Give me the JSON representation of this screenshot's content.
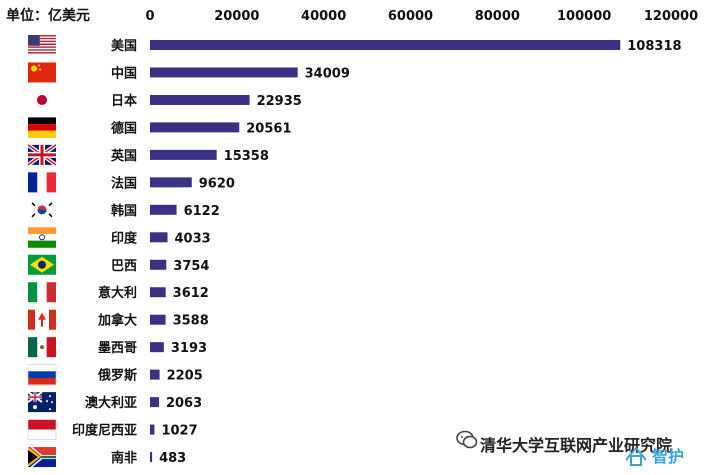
{
  "chart_data": {
    "type": "bar",
    "orientation": "horizontal",
    "unit_label": "单位：亿美元",
    "categories": [
      "美国",
      "中国",
      "日本",
      "德国",
      "英国",
      "法国",
      "韩国",
      "印度",
      "巴西",
      "意大利",
      "加拿大",
      "墨西哥",
      "俄罗斯",
      "澳大利亚",
      "印度尼西亚",
      "南非"
    ],
    "values": [
      108318,
      34009,
      22935,
      20561,
      15358,
      9620,
      6122,
      4033,
      3754,
      3612,
      3588,
      3193,
      2205,
      2063,
      1027,
      483
    ],
    "xlim": [
      0,
      120000
    ],
    "xticks": [
      "0",
      "20000",
      "40000",
      "60000",
      "80000",
      "100000",
      "120000"
    ],
    "xtick_values": [
      0,
      20000,
      40000,
      60000,
      80000,
      100000,
      120000
    ],
    "bar_color": "#3a3185",
    "grid": false,
    "axis_position": "top"
  },
  "flags": [
    "us-flag",
    "china-flag",
    "japan-flag",
    "germany-flag",
    "uk-flag",
    "france-flag",
    "korea-flag",
    "india-flag",
    "brazil-flag",
    "italy-flag",
    "canada-flag",
    "mexico-flag",
    "russia-flag",
    "australia-flag",
    "indonesia-flag",
    "south-africa-flag"
  ],
  "watermark": "清华大学互联网产业研究院",
  "logo_text": "智护"
}
